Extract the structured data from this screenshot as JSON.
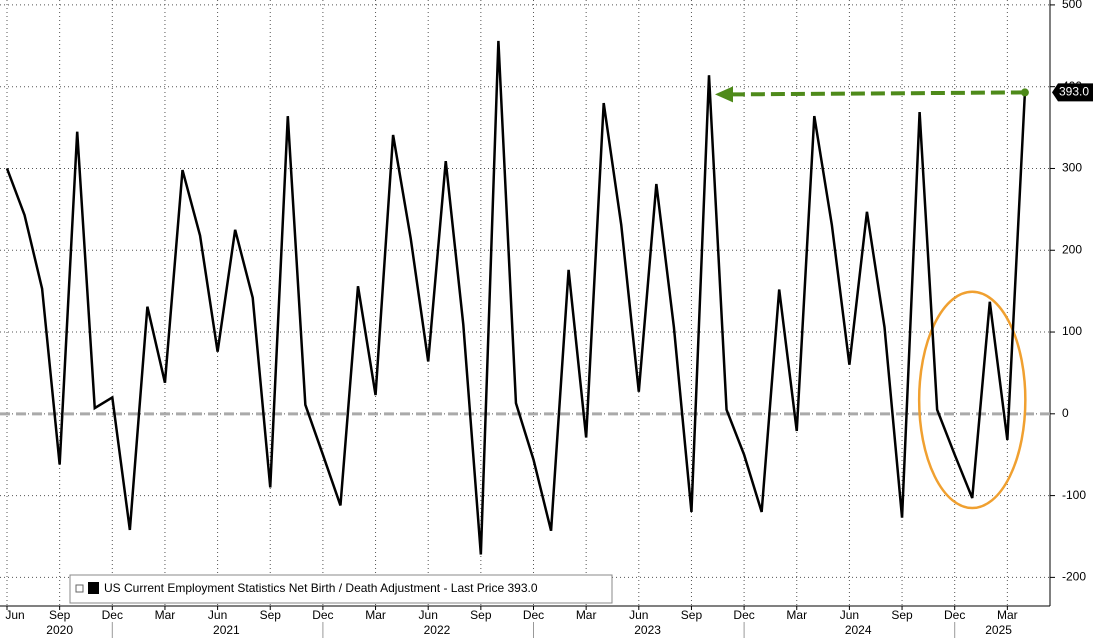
{
  "chart_data": {
    "type": "line",
    "categories": [
      "Jun",
      null,
      null,
      "Sep",
      null,
      null,
      "Dec",
      null,
      null,
      "Mar",
      null,
      null,
      "Jun",
      null,
      null,
      "Sep",
      null,
      null,
      "Dec",
      null,
      null,
      "Mar",
      null,
      null,
      "Jun",
      null,
      null,
      "Sep",
      null,
      null,
      "Dec",
      null,
      null,
      "Mar",
      null,
      null,
      "Jun",
      null,
      null,
      "Sep",
      null,
      null,
      "Dec",
      null,
      null,
      "Mar",
      null,
      null,
      "Jun",
      null,
      null,
      "Sep",
      null,
      null,
      "Dec",
      null,
      null,
      "Mar",
      null
    ],
    "x_groups": [
      {
        "label": "2020",
        "count": 7
      },
      {
        "label": "2021",
        "count": 12
      },
      {
        "label": "2022",
        "count": 12
      },
      {
        "label": "2023",
        "count": 12
      },
      {
        "label": "2024",
        "count": 12
      },
      {
        "label": "2025",
        "count": 4
      }
    ],
    "series": [
      {
        "name": "US Current Employment Statistics Net Birth / Death Adjustment - Last Price 393.0",
        "color": "#000000",
        "values": [
          300,
          243,
          153,
          -62,
          345,
          7,
          20,
          -142,
          131,
          38,
          298,
          218,
          76,
          225,
          142,
          -90,
          364,
          11,
          -50,
          -112,
          156,
          23,
          341,
          215,
          64,
          309,
          109,
          -172,
          456,
          13,
          -56,
          -143,
          176,
          -29,
          380,
          231,
          27,
          281,
          106,
          -120,
          414,
          5,
          -50,
          -120,
          152,
          -21,
          364,
          231,
          60,
          247,
          106,
          -127,
          369,
          5,
          -50,
          -103,
          137,
          -32,
          393
        ],
        "value_labels": [
          null,
          null,
          null,
          null,
          null,
          null,
          null,
          null,
          null,
          null,
          null,
          null,
          null,
          null,
          null,
          null,
          null,
          null,
          null,
          null,
          null,
          null,
          null,
          null,
          null,
          null,
          null,
          null,
          null,
          null,
          null,
          null,
          null,
          null,
          null,
          null,
          null,
          null,
          null,
          null,
          null,
          null,
          null,
          null,
          null,
          null,
          null,
          null,
          null,
          null,
          null,
          null,
          null,
          null,
          null,
          null,
          null,
          null,
          "393.0"
        ]
      }
    ],
    "ylim": [
      -235,
      506
    ],
    "yticks": [
      -200,
      -100,
      0,
      100,
      200,
      300,
      400,
      500
    ],
    "grid": true,
    "hline": {
      "value": 0,
      "color": "#aaaaaa"
    },
    "arrow": {
      "from_index": 58,
      "to_index": 40,
      "color": "#4e8a1a"
    },
    "highlight": {
      "start_index": 53,
      "end_index": 57,
      "color": "#f0a030"
    },
    "legend": "bottom-left"
  }
}
